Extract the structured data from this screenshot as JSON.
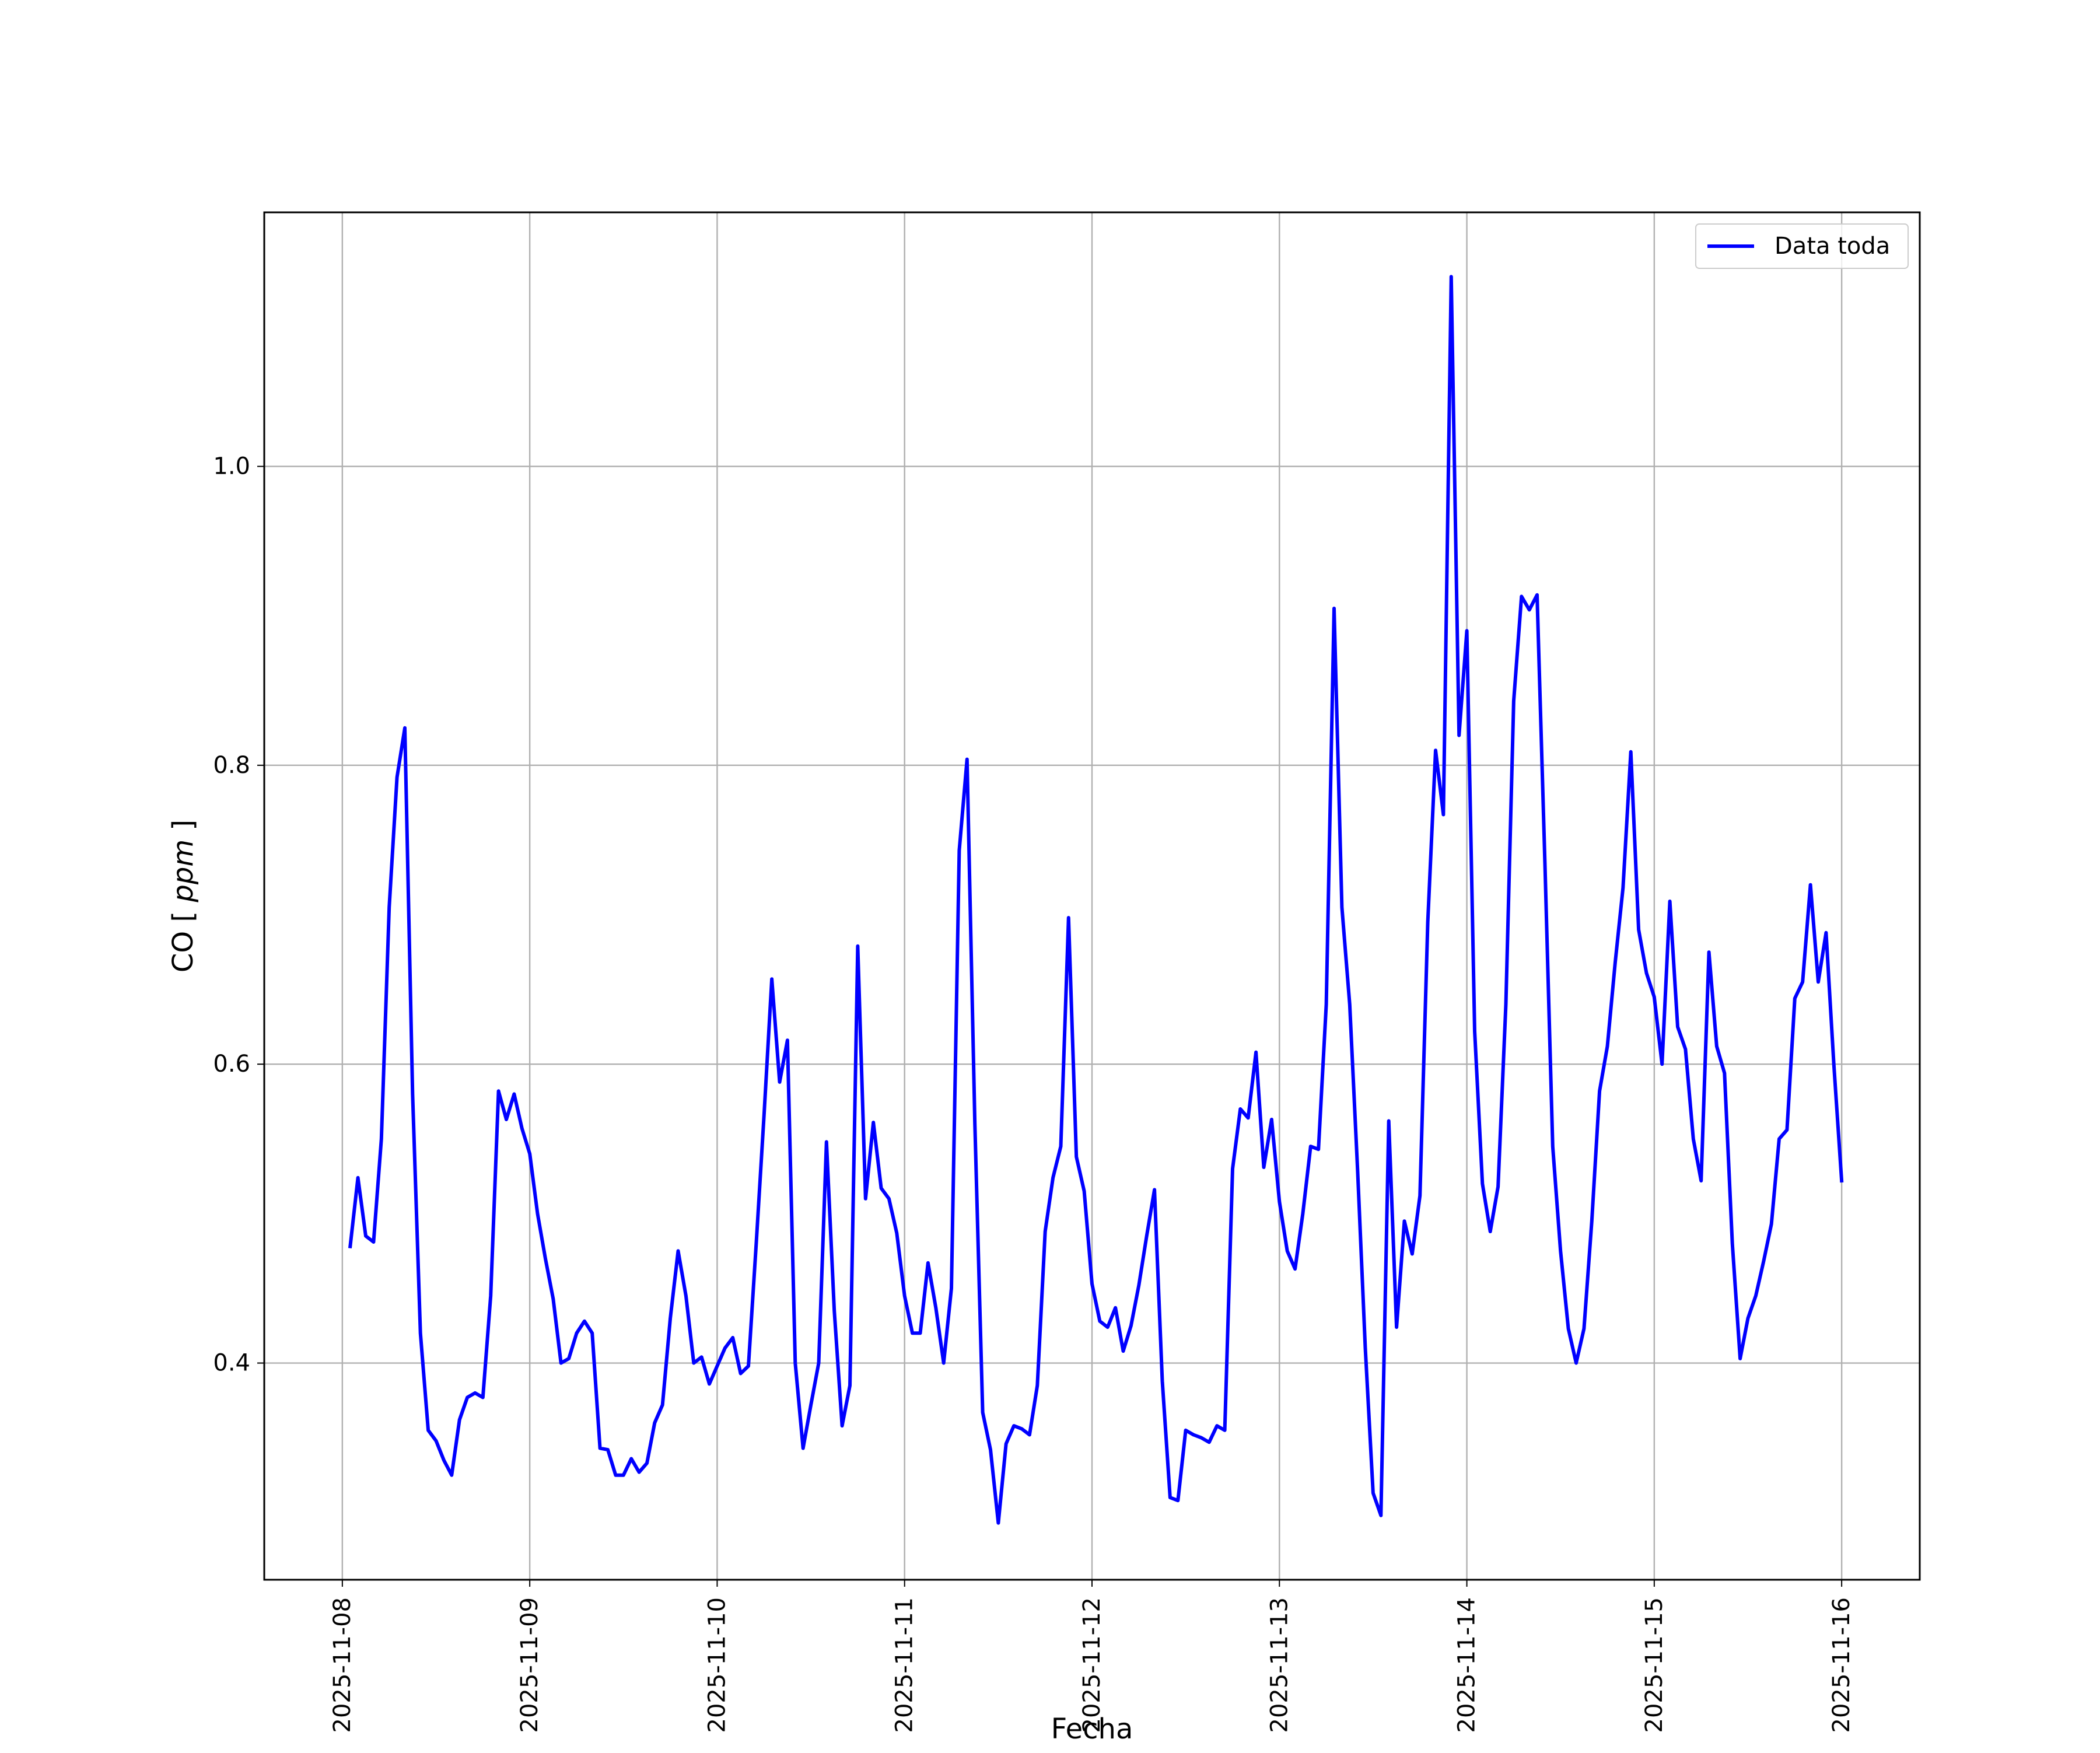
{
  "chart_data": {
    "type": "line",
    "title": "",
    "xlabel": "Fecha",
    "ylabel_main": "CO",
    "ylabel_unit": "ppm",
    "x_ticks": [
      "2025-11-08",
      "2025-11-09",
      "2025-11-10",
      "2025-11-11",
      "2025-11-12",
      "2025-11-13",
      "2025-11-14",
      "2025-11-15",
      "2025-11-16"
    ],
    "y_ticks": [
      "0.4",
      "0.6",
      "0.8",
      "1.0"
    ],
    "xlim": [
      "2025-11-07 14:00",
      "2025-11-16 10:00"
    ],
    "ylim": [
      0.255,
      1.17
    ],
    "grid": true,
    "legend_position": "top-right",
    "colors": {
      "series": "#0000ff",
      "grid": "#b0b0b0",
      "axes": "#000000"
    },
    "series": [
      {
        "name": "Data toda",
        "x": [
          "2025-11-08 01:00",
          "2025-11-08 02:00",
          "2025-11-08 03:00",
          "2025-11-08 04:00",
          "2025-11-08 05:00",
          "2025-11-08 06:00",
          "2025-11-08 07:00",
          "2025-11-08 08:00",
          "2025-11-08 09:00",
          "2025-11-08 10:00",
          "2025-11-08 11:00",
          "2025-11-08 12:00",
          "2025-11-08 13:00",
          "2025-11-08 14:00",
          "2025-11-08 15:00",
          "2025-11-08 16:00",
          "2025-11-08 17:00",
          "2025-11-08 18:00",
          "2025-11-08 19:00",
          "2025-11-08 20:00",
          "2025-11-08 21:00",
          "2025-11-08 22:00",
          "2025-11-08 23:00",
          "2025-11-09 00:00",
          "2025-11-09 01:00",
          "2025-11-09 02:00",
          "2025-11-09 03:00",
          "2025-11-09 04:00",
          "2025-11-09 05:00",
          "2025-11-09 06:00",
          "2025-11-09 07:00",
          "2025-11-09 08:00",
          "2025-11-09 09:00",
          "2025-11-09 10:00",
          "2025-11-09 11:00",
          "2025-11-09 12:00",
          "2025-11-09 13:00",
          "2025-11-09 14:00",
          "2025-11-09 15:00",
          "2025-11-09 16:00",
          "2025-11-09 17:00",
          "2025-11-09 18:00",
          "2025-11-09 19:00",
          "2025-11-09 20:00",
          "2025-11-09 21:00",
          "2025-11-09 22:00",
          "2025-11-09 23:00",
          "2025-11-10 00:00",
          "2025-11-10 01:00",
          "2025-11-10 02:00",
          "2025-11-10 03:00",
          "2025-11-10 04:00",
          "2025-11-10 05:00",
          "2025-11-10 06:00",
          "2025-11-10 07:00",
          "2025-11-10 08:00",
          "2025-11-10 09:00",
          "2025-11-10 10:00",
          "2025-11-10 11:00",
          "2025-11-10 12:00",
          "2025-11-10 13:00",
          "2025-11-10 14:00",
          "2025-11-10 15:00",
          "2025-11-10 16:00",
          "2025-11-10 17:00",
          "2025-11-10 18:00",
          "2025-11-10 19:00",
          "2025-11-10 20:00",
          "2025-11-10 21:00",
          "2025-11-10 22:00",
          "2025-11-10 23:00",
          "2025-11-11 00:00",
          "2025-11-11 01:00",
          "2025-11-11 02:00",
          "2025-11-11 03:00",
          "2025-11-11 04:00",
          "2025-11-11 05:00",
          "2025-11-11 06:00",
          "2025-11-11 07:00",
          "2025-11-11 08:00",
          "2025-11-11 09:00",
          "2025-11-11 10:00",
          "2025-11-11 11:00",
          "2025-11-11 12:00",
          "2025-11-11 13:00",
          "2025-11-11 14:00",
          "2025-11-11 15:00",
          "2025-11-11 16:00",
          "2025-11-11 17:00",
          "2025-11-11 18:00",
          "2025-11-11 19:00",
          "2025-11-11 20:00",
          "2025-11-11 21:00",
          "2025-11-11 22:00",
          "2025-11-11 23:00",
          "2025-11-12 00:00",
          "2025-11-12 01:00",
          "2025-11-12 02:00",
          "2025-11-12 03:00",
          "2025-11-12 04:00",
          "2025-11-12 05:00",
          "2025-11-12 06:00",
          "2025-11-12 07:00",
          "2025-11-12 08:00",
          "2025-11-12 09:00",
          "2025-11-12 10:00",
          "2025-11-12 11:00",
          "2025-11-12 12:00",
          "2025-11-12 13:00",
          "2025-11-12 14:00",
          "2025-11-12 15:00",
          "2025-11-12 16:00",
          "2025-11-12 17:00",
          "2025-11-12 18:00",
          "2025-11-12 19:00",
          "2025-11-12 20:00",
          "2025-11-12 21:00",
          "2025-11-12 22:00",
          "2025-11-12 23:00",
          "2025-11-13 00:00",
          "2025-11-13 01:00",
          "2025-11-13 02:00",
          "2025-11-13 03:00",
          "2025-11-13 04:00",
          "2025-11-13 05:00",
          "2025-11-13 06:00",
          "2025-11-13 07:00",
          "2025-11-13 08:00",
          "2025-11-13 09:00",
          "2025-11-13 10:00",
          "2025-11-13 11:00",
          "2025-11-13 12:00",
          "2025-11-13 13:00",
          "2025-11-13 14:00",
          "2025-11-13 15:00",
          "2025-11-13 16:00",
          "2025-11-13 17:00",
          "2025-11-13 18:00",
          "2025-11-13 19:00",
          "2025-11-13 20:00",
          "2025-11-13 21:00",
          "2025-11-13 22:00",
          "2025-11-13 23:00",
          "2025-11-14 00:00",
          "2025-11-14 01:00",
          "2025-11-14 02:00",
          "2025-11-14 03:00",
          "2025-11-14 04:00",
          "2025-11-14 05:00",
          "2025-11-14 06:00",
          "2025-11-14 07:00",
          "2025-11-14 08:00",
          "2025-11-14 09:00",
          "2025-11-14 10:00",
          "2025-11-14 11:00",
          "2025-11-14 12:00",
          "2025-11-14 13:00",
          "2025-11-14 14:00",
          "2025-11-14 15:00",
          "2025-11-14 16:00",
          "2025-11-14 17:00",
          "2025-11-14 18:00",
          "2025-11-14 19:00",
          "2025-11-14 20:00",
          "2025-11-14 21:00",
          "2025-11-14 22:00",
          "2025-11-14 23:00",
          "2025-11-15 00:00",
          "2025-11-15 01:00",
          "2025-11-15 02:00",
          "2025-11-15 03:00",
          "2025-11-15 04:00",
          "2025-11-15 05:00",
          "2025-11-15 06:00",
          "2025-11-15 07:00",
          "2025-11-15 08:00",
          "2025-11-15 09:00",
          "2025-11-15 10:00",
          "2025-11-15 11:00",
          "2025-11-15 12:00",
          "2025-11-15 13:00",
          "2025-11-15 14:00",
          "2025-11-15 15:00",
          "2025-11-15 16:00",
          "2025-11-15 17:00",
          "2025-11-15 18:00",
          "2025-11-15 19:00",
          "2025-11-15 20:00",
          "2025-11-15 21:00",
          "2025-11-15 22:00",
          "2025-11-15 23:00",
          "2025-11-16 00:00"
        ],
        "y": [
          0.478,
          0.524,
          0.485,
          0.481,
          0.55,
          0.705,
          0.792,
          0.825,
          0.58,
          0.42,
          0.355,
          0.348,
          0.335,
          0.325,
          0.362,
          0.377,
          0.38,
          0.377,
          0.445,
          0.582,
          0.563,
          0.58,
          0.557,
          0.54,
          0.5,
          0.47,
          0.443,
          0.4,
          0.403,
          0.42,
          0.428,
          0.42,
          0.343,
          0.342,
          0.325,
          0.325,
          0.336,
          0.327,
          0.333,
          0.36,
          0.372,
          0.43,
          0.475,
          0.445,
          0.4,
          0.404,
          0.386,
          0.398,
          0.41,
          0.417,
          0.393,
          0.398,
          0.48,
          0.566,
          0.657,
          0.588,
          0.616,
          0.4,
          0.343,
          0.372,
          0.4,
          0.548,
          0.435,
          0.358,
          0.385,
          0.679,
          0.51,
          0.561,
          0.517,
          0.51,
          0.487,
          0.445,
          0.42,
          0.42,
          0.467,
          0.437,
          0.4,
          0.45,
          0.743,
          0.804,
          0.56,
          0.367,
          0.342,
          0.293,
          0.346,
          0.358,
          0.356,
          0.352,
          0.385,
          0.488,
          0.524,
          0.545,
          0.698,
          0.538,
          0.515,
          0.453,
          0.428,
          0.424,
          0.437,
          0.408,
          0.425,
          0.452,
          0.485,
          0.516,
          0.388,
          0.31,
          0.308,
          0.355,
          0.352,
          0.35,
          0.347,
          0.358,
          0.355,
          0.53,
          0.57,
          0.564,
          0.608,
          0.531,
          0.563,
          0.508,
          0.475,
          0.463,
          0.5,
          0.545,
          0.543,
          0.64,
          0.905,
          0.705,
          0.64,
          0.53,
          0.41,
          0.313,
          0.298,
          0.562,
          0.424,
          0.495,
          0.473,
          0.512,
          0.695,
          0.81,
          0.767,
          1.127,
          0.82,
          0.89,
          0.622,
          0.52,
          0.488,
          0.518,
          0.64,
          0.843,
          0.913,
          0.904,
          0.914,
          0.735,
          0.545,
          0.475,
          0.423,
          0.4,
          0.423,
          0.495,
          0.582,
          0.612,
          0.668,
          0.718,
          0.809,
          0.69,
          0.661,
          0.645,
          0.6,
          0.709,
          0.625,
          0.61,
          0.55,
          0.522,
          0.675,
          0.612,
          0.594,
          0.48,
          0.403,
          0.43,
          0.445,
          0.468,
          0.493,
          0.55,
          0.556,
          0.644,
          0.655,
          0.72,
          0.655,
          0.688,
          0.6,
          0.522
        ]
      }
    ]
  }
}
